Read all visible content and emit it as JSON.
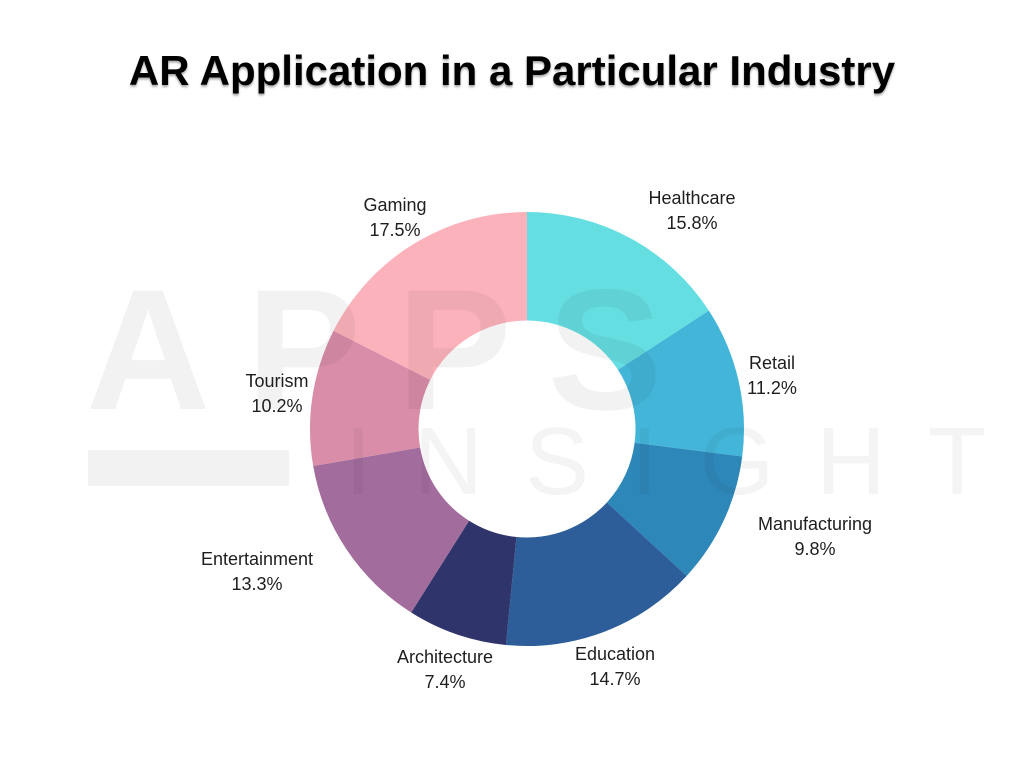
{
  "title": "AR Application in a Particular Industry",
  "watermark": {
    "line1": "APPS",
    "line2": "INSIGHT"
  },
  "chart_data": {
    "type": "pie",
    "subtype": "donut",
    "title": "AR Application in a Particular Industry",
    "direction": "clockwise",
    "start_angle_deg": 0,
    "value_suffix": "%",
    "legend_position": "labels-outside",
    "hole_ratio": 0.5,
    "slices": [
      {
        "label": "Healthcare",
        "value": 15.8,
        "color": "#65DEE2"
      },
      {
        "label": "Retail",
        "value": 11.2,
        "color": "#43B5D8"
      },
      {
        "label": "Manufacturing",
        "value": 9.8,
        "color": "#2E87B9"
      },
      {
        "label": "Education",
        "value": 14.7,
        "color": "#2D5E9A"
      },
      {
        "label": "Architecture",
        "value": 7.4,
        "color": "#2F346B"
      },
      {
        "label": "Entertainment",
        "value": 13.3,
        "color": "#A26C9D"
      },
      {
        "label": "Tourism",
        "value": 10.2,
        "color": "#D98DA9"
      },
      {
        "label": "Gaming",
        "value": 17.5,
        "color": "#FBB2BB"
      }
    ]
  }
}
